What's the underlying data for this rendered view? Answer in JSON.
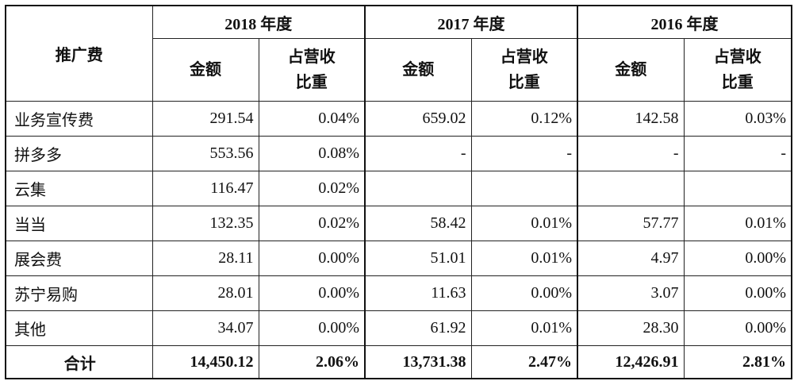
{
  "table": {
    "corner_header": "推广费",
    "years": [
      "2018 年度",
      "2017 年度",
      "2016 年度"
    ],
    "sub_headers": {
      "amount": "金额",
      "ratio_line1": "占营收",
      "ratio_line2": "比重"
    },
    "rows": [
      {
        "label": "业务宣传费",
        "cells": [
          "291.54",
          "0.04%",
          "659.02",
          "0.12%",
          "142.58",
          "0.03%"
        ]
      },
      {
        "label": "拼多多",
        "cells": [
          "553.56",
          "0.08%",
          "-",
          "-",
          "-",
          "-"
        ]
      },
      {
        "label": "云集",
        "cells": [
          "116.47",
          "0.02%",
          "",
          "",
          "",
          ""
        ]
      },
      {
        "label": "当当",
        "cells": [
          "132.35",
          "0.02%",
          "58.42",
          "0.01%",
          "57.77",
          "0.01%"
        ]
      },
      {
        "label": "展会费",
        "cells": [
          "28.11",
          "0.00%",
          "51.01",
          "0.01%",
          "4.97",
          "0.00%"
        ]
      },
      {
        "label": "苏宁易购",
        "cells": [
          "28.01",
          "0.00%",
          "11.63",
          "0.00%",
          "3.07",
          "0.00%"
        ]
      },
      {
        "label": "其他",
        "cells": [
          "34.07",
          "0.00%",
          "61.92",
          "0.01%",
          "28.30",
          "0.00%"
        ]
      }
    ],
    "total": {
      "label": "合计",
      "cells": [
        "14,450.12",
        "2.06%",
        "13,731.38",
        "2.47%",
        "12,426.91",
        "2.81%"
      ]
    }
  }
}
